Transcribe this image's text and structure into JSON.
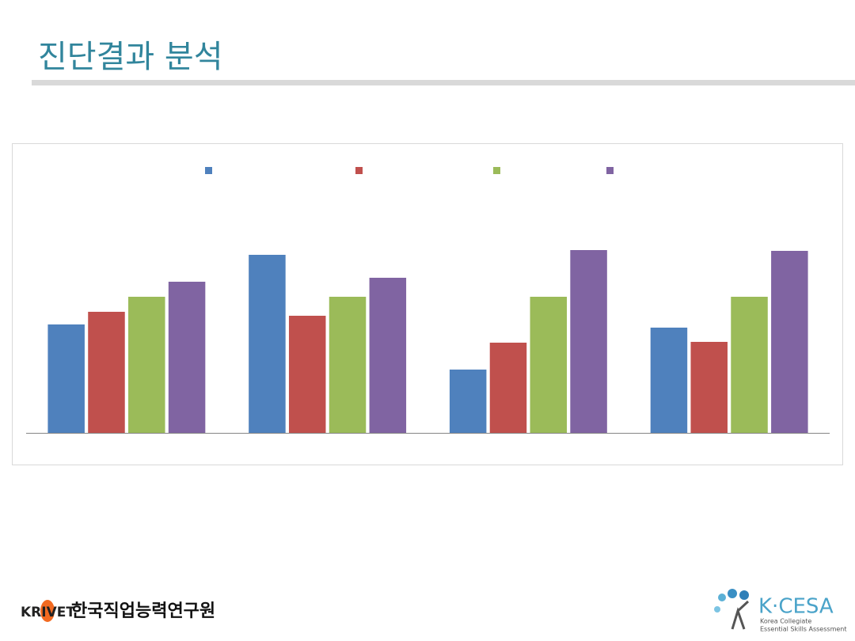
{
  "header": {
    "title": "진단결과 분석"
  },
  "chart_data": {
    "type": "bar",
    "categories": [
      null,
      null,
      null,
      null
    ],
    "series": [
      {
        "color": "#4f81bd",
        "values": [
          137,
          225,
          80,
          133
        ]
      },
      {
        "color": "#c0504d",
        "values": [
          153,
          148,
          114,
          115
        ]
      },
      {
        "color": "#9bbb59",
        "values": [
          172,
          172,
          172,
          172
        ]
      },
      {
        "color": "#8064a2",
        "values": [
          191,
          196,
          231,
          230
        ]
      }
    ],
    "ylim": [
      0,
      250
    ],
    "grid": false
  },
  "footer": {
    "left_logo": {
      "brand": "KRIVET",
      "name": "한국직업능력연구원"
    },
    "right_logo": {
      "brand": "K·CESA",
      "line1": "Korea Collegiate",
      "line2": "Essential Skills Assessment"
    }
  }
}
